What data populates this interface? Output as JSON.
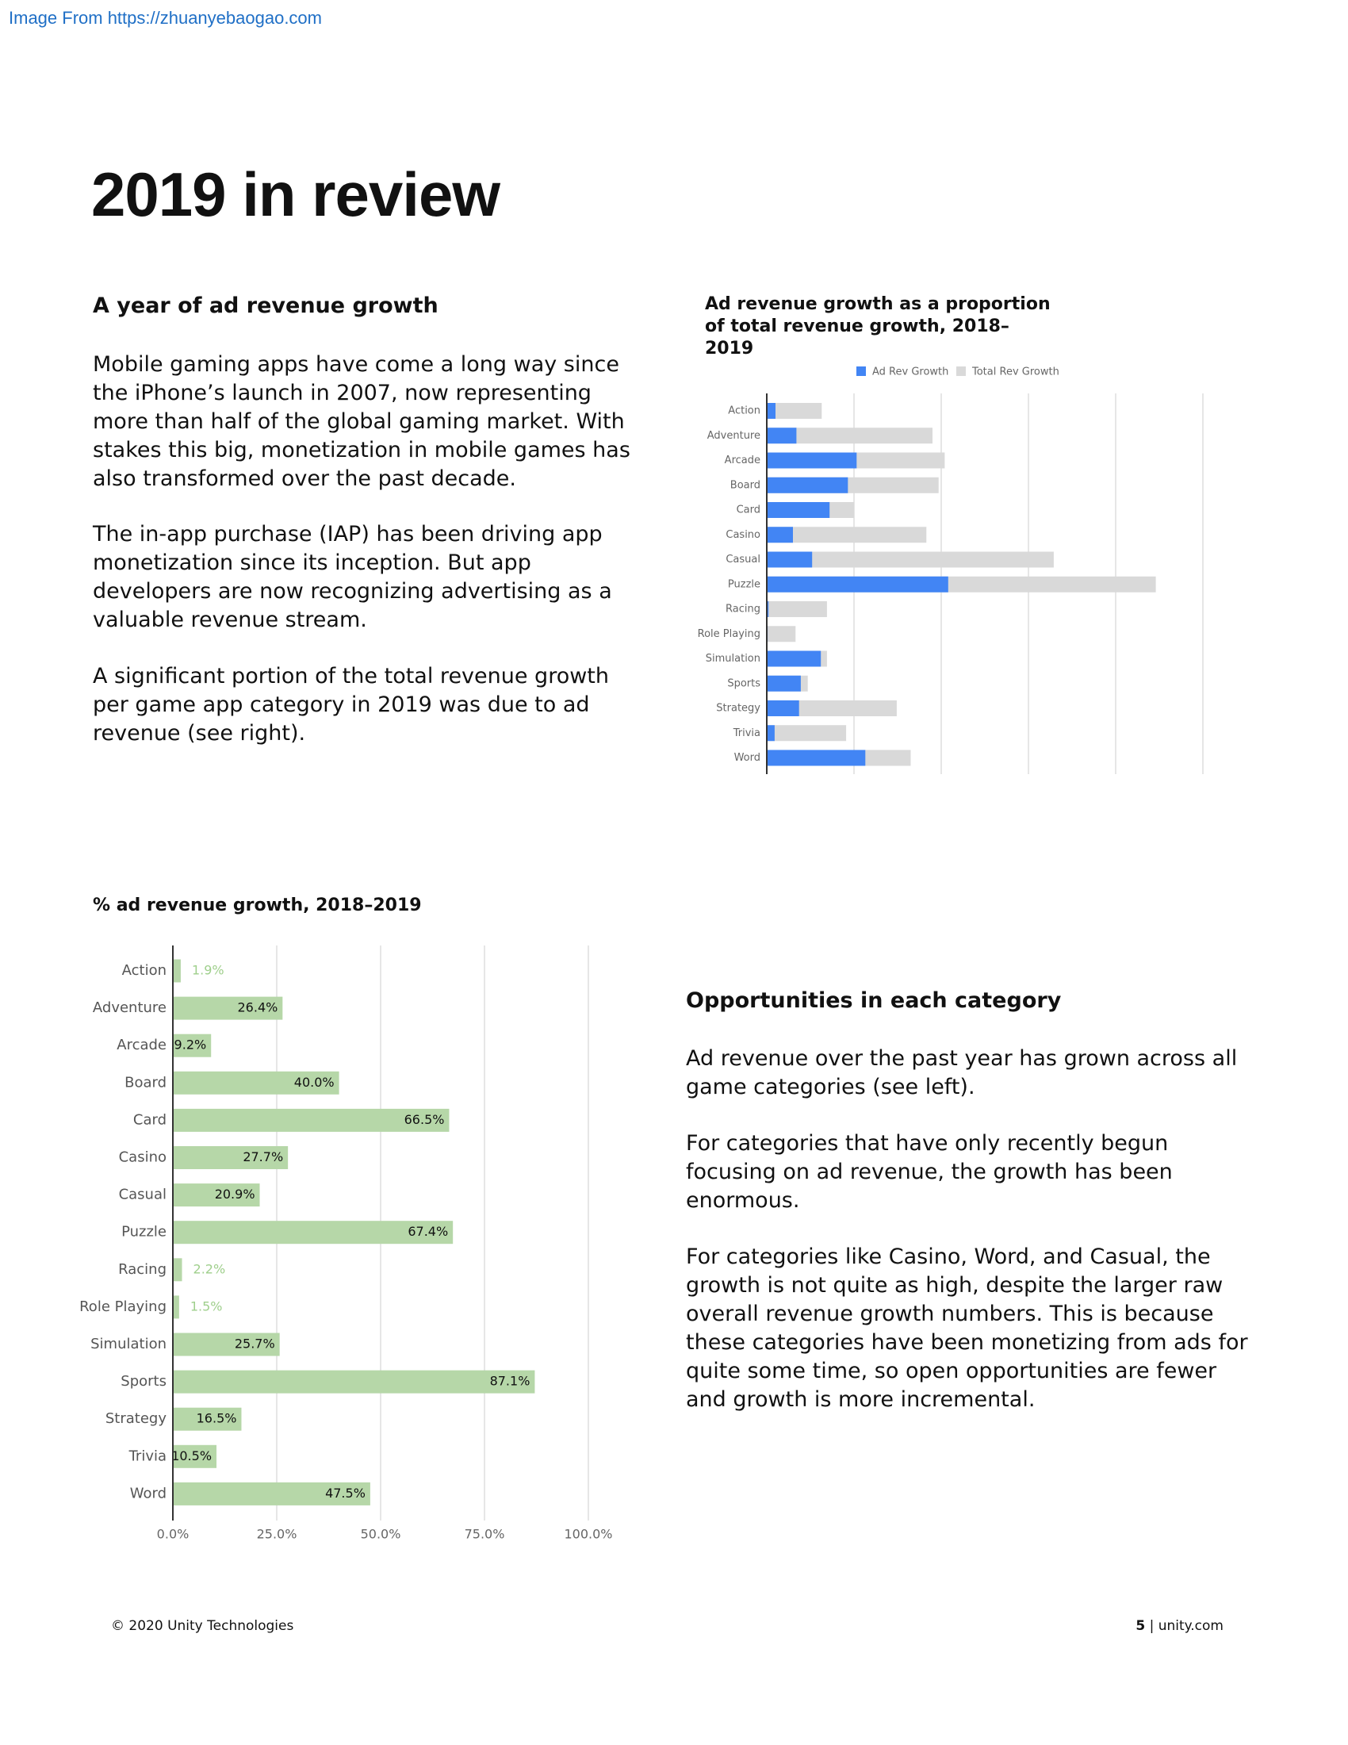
{
  "watermark": "Image From https://zhuanyebaogao.com",
  "header": {
    "title": "2019 in review"
  },
  "sections": [
    {
      "heading": "A year of ad revenue growth",
      "paragraphs": [
        "Mobile gaming apps have come a long way since the iPhone’s launch in 2007, now representing more than half of the global gaming market. With stakes this big, monetization in mobile games has also transformed over the past decade.",
        "The in-app purchase (IAP) has been driving app monetization since its inception. But app developers are now recognizing advertising as a valuable revenue stream.",
        "A significant portion of the total revenue growth per game app category in 2019 was due to ad revenue (see right)."
      ]
    },
    {
      "heading": "Opportunities in each category",
      "paragraphs": [
        "Ad revenue over the past year has grown across all game categories (see left).",
        "For categories that have only recently begun focusing on ad revenue, the growth has been enormous.",
        "For categories like Casino, Word, and Casual, the growth is not quite as high, despite the larger raw overall revenue growth numbers. This is because these categories have been monetizing from ads for quite some time, so open opportunities are fewer and growth is more incremental."
      ]
    }
  ],
  "chart_data": [
    {
      "type": "bar",
      "orientation": "horizontal",
      "barmode": "overlay",
      "title": "Ad revenue growth as a proportion of total revenue growth, 2018–2019",
      "categories": [
        "Action",
        "Adventure",
        "Arcade",
        "Board",
        "Card",
        "Casino",
        "Casual",
        "Puzzle",
        "Racing",
        "Role Playing",
        "Simulation",
        "Sports",
        "Strategy",
        "Trivia",
        "Word"
      ],
      "series": [
        {
          "name": "Ad Rev Growth",
          "color": "#4285f4",
          "values": [
            0.1,
            0.34,
            1.03,
            0.93,
            0.72,
            0.3,
            0.52,
            2.08,
            0.02,
            0.01,
            0.62,
            0.39,
            0.37,
            0.09,
            1.13
          ]
        },
        {
          "name": "Total Rev Growth",
          "color": "#d9d9d9",
          "values": [
            0.63,
            1.9,
            2.04,
            1.97,
            1.0,
            1.83,
            3.29,
            4.46,
            0.69,
            0.33,
            0.69,
            0.47,
            1.49,
            0.91,
            1.65
          ]
        }
      ],
      "xlim": [
        0,
        5
      ],
      "xticks": [
        0,
        1,
        2,
        3,
        4,
        5
      ],
      "grid": true,
      "legend": "top"
    },
    {
      "type": "bar",
      "orientation": "horizontal",
      "title": "% ad revenue growth, 2018–2019",
      "categories": [
        "Action",
        "Adventure",
        "Arcade",
        "Board",
        "Card",
        "Casino",
        "Casual",
        "Puzzle",
        "Racing",
        "Role Playing",
        "Simulation",
        "Sports",
        "Strategy",
        "Trivia",
        "Word"
      ],
      "values": [
        1.9,
        26.4,
        9.2,
        40.0,
        66.5,
        27.7,
        20.9,
        67.4,
        2.2,
        1.5,
        25.7,
        87.1,
        16.5,
        10.5,
        47.5
      ],
      "value_labels": [
        "1.9%",
        "26.4%",
        "9.2%",
        "40.0%",
        "66.5%",
        "27.7%",
        "20.9%",
        "67.4%",
        "2.2%",
        "1.5%",
        "25.7%",
        "87.1%",
        "16.5%",
        "10.5%",
        "47.5%"
      ],
      "color": "#b6d7a8",
      "xlim": [
        0,
        100
      ],
      "xticks": [
        {
          "value": 0,
          "label": "0.0%"
        },
        {
          "value": 25,
          "label": "25.0%"
        },
        {
          "value": 50,
          "label": "50.0%"
        },
        {
          "value": 75,
          "label": "75.0%"
        },
        {
          "value": 100,
          "label": "100.0%"
        }
      ],
      "grid": true
    }
  ],
  "footer": {
    "copyright": "© 2020 Unity Technologies",
    "page_number": "5",
    "separator": "|",
    "site": "unity.com"
  }
}
